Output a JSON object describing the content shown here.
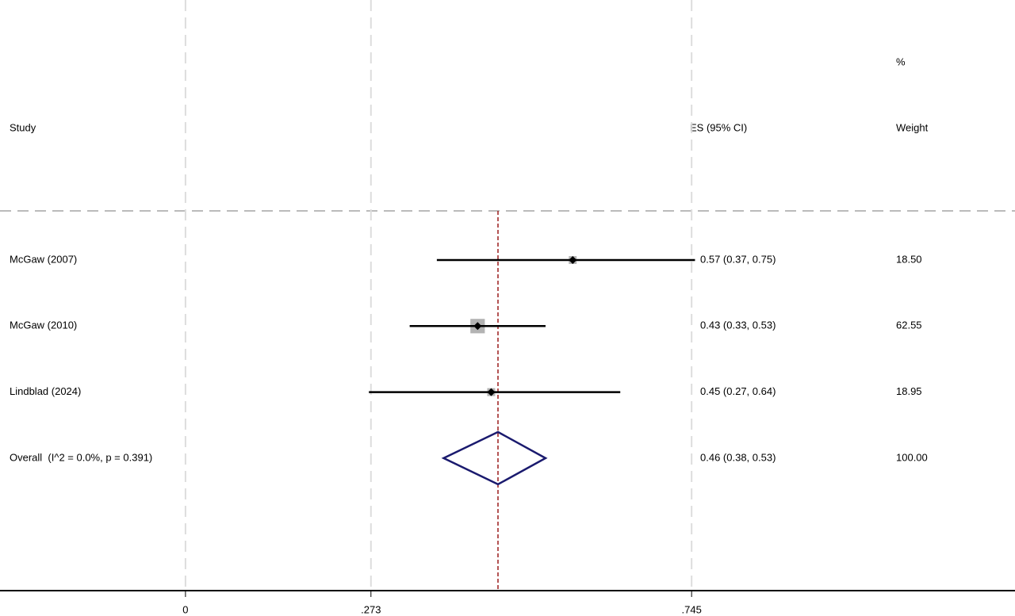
{
  "chart_data": {
    "type": "forest",
    "headers": {
      "study": "Study",
      "es": "ES (95% CI)",
      "weight_top": "%",
      "weight": "Weight"
    },
    "categories": [
      "McGaw (2007)",
      "McGaw (2010)",
      "Lindblad (2024)"
    ],
    "values": [
      0.57,
      0.43,
      0.45
    ],
    "lower": [
      0.37,
      0.33,
      0.27
    ],
    "upper": [
      0.75,
      0.53,
      0.64
    ],
    "value_labels": [
      "0.57 (0.37, 0.75)",
      "0.43 (0.33, 0.53)",
      "0.45 (0.27, 0.64)"
    ],
    "weights": [
      18.5,
      62.55,
      18.95
    ],
    "weight_labels": [
      "18.50",
      "62.55",
      "18.95"
    ],
    "overall": {
      "name": "Overall  (I^2 = 0.0%, p = 0.391)",
      "value": 0.46,
      "lower": 0.38,
      "upper": 0.53,
      "value_label": "0.46 (0.38, 0.53)",
      "weight": 100,
      "weight_label": "100.00"
    },
    "xlim": [
      -0.273,
      1.221
    ],
    "xticks": [
      0,
      {
        "value": 0.273,
        "label": ".273"
      },
      {
        "value": 0.745,
        "label": ".745"
      }
    ],
    "grid": true,
    "color": "#000000",
    "box_color": "#b3b3b3",
    "overall_color": "#1a1a6e",
    "overall_line_color": "#9b1c1c"
  }
}
